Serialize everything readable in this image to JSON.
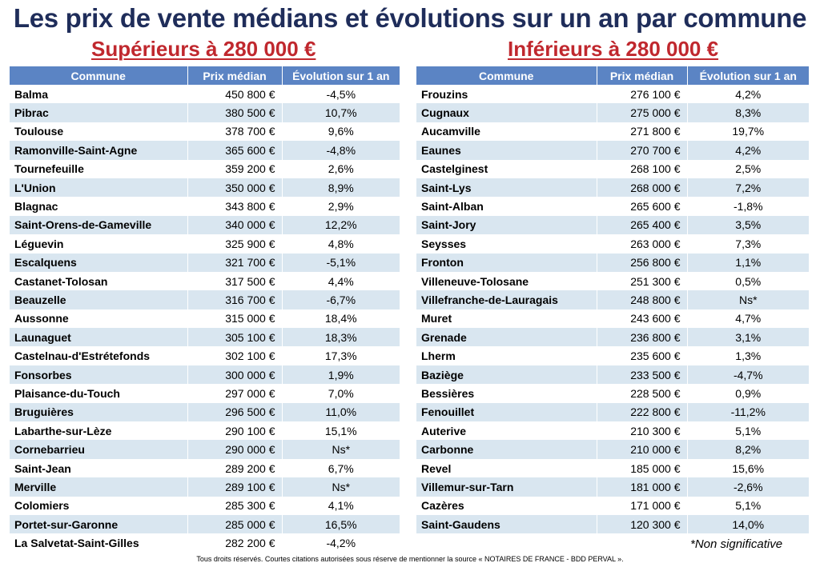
{
  "title": "Les prix de vente médians et évolutions sur un an par commune",
  "left": {
    "subtitle": "Supérieurs à 280 000 €",
    "headers": [
      "Commune",
      "Prix médian",
      "Évolution sur 1 an"
    ],
    "rows": [
      [
        "Balma",
        "450 800 €",
        "-4,5%"
      ],
      [
        "Pibrac",
        "380 500 €",
        "10,7%"
      ],
      [
        "Toulouse",
        "378 700 €",
        "9,6%"
      ],
      [
        "Ramonville-Saint-Agne",
        "365 600 €",
        "-4,8%"
      ],
      [
        "Tournefeuille",
        "359 200 €",
        "2,6%"
      ],
      [
        "L'Union",
        "350 000 €",
        "8,9%"
      ],
      [
        "Blagnac",
        "343 800 €",
        "2,9%"
      ],
      [
        "Saint-Orens-de-Gameville",
        "340 000 €",
        "12,2%"
      ],
      [
        "Léguevin",
        "325 900 €",
        "4,8%"
      ],
      [
        "Escalquens",
        "321 700 €",
        "-5,1%"
      ],
      [
        "Castanet-Tolosan",
        "317 500 €",
        "4,4%"
      ],
      [
        "Beauzelle",
        "316 700 €",
        "-6,7%"
      ],
      [
        "Aussonne",
        "315 000 €",
        "18,4%"
      ],
      [
        "Launaguet",
        "305 100 €",
        "18,3%"
      ],
      [
        "Castelnau-d'Estrétefonds",
        "302 100 €",
        "17,3%"
      ],
      [
        "Fonsorbes",
        "300 000 €",
        "1,9%"
      ],
      [
        "Plaisance-du-Touch",
        "297 000 €",
        "7,0%"
      ],
      [
        "Bruguières",
        "296 500 €",
        "11,0%"
      ],
      [
        "Labarthe-sur-Lèze",
        "290 100 €",
        "15,1%"
      ],
      [
        "Cornebarrieu",
        "290 000 €",
        "Ns*"
      ],
      [
        "Saint-Jean",
        "289 200 €",
        "6,7%"
      ],
      [
        "Merville",
        "289 100 €",
        "Ns*"
      ],
      [
        "Colomiers",
        "285 300 €",
        "4,1%"
      ],
      [
        "Portet-sur-Garonne",
        "285 000 €",
        "16,5%"
      ],
      [
        "La Salvetat-Saint-Gilles",
        "282 200 €",
        "-4,2%"
      ]
    ]
  },
  "right": {
    "subtitle": "Inférieurs à 280 000 €",
    "headers": [
      "Commune",
      "Prix médian",
      "Évolution sur 1 an"
    ],
    "rows": [
      [
        "Frouzins",
        "276 100 €",
        "4,2%"
      ],
      [
        "Cugnaux",
        "275 000 €",
        "8,3%"
      ],
      [
        "Aucamville",
        "271 800 €",
        "19,7%"
      ],
      [
        "Eaunes",
        "270 700 €",
        "4,2%"
      ],
      [
        "Castelginest",
        "268 100 €",
        "2,5%"
      ],
      [
        "Saint-Lys",
        "268 000 €",
        "7,2%"
      ],
      [
        "Saint-Alban",
        "265 600 €",
        "-1,8%"
      ],
      [
        "Saint-Jory",
        "265 400 €",
        "3,5%"
      ],
      [
        "Seysses",
        "263 000 €",
        "7,3%"
      ],
      [
        "Fronton",
        "256 800 €",
        "1,1%"
      ],
      [
        "Villeneuve-Tolosane",
        "251 300 €",
        "0,5%"
      ],
      [
        "Villefranche-de-Lauragais",
        "248 800 €",
        "Ns*"
      ],
      [
        "Muret",
        "243 600 €",
        "4,7%"
      ],
      [
        "Grenade",
        "236 800 €",
        "3,1%"
      ],
      [
        "Lherm",
        "235 600 €",
        "1,3%"
      ],
      [
        "Baziège",
        "233 500 €",
        "-4,7%"
      ],
      [
        "Bessières",
        "228 500 €",
        "0,9%"
      ],
      [
        "Fenouillet",
        "222 800 €",
        "-11,2%"
      ],
      [
        "Auterive",
        "210 300 €",
        "5,1%"
      ],
      [
        "Carbonne",
        "210 000 €",
        "8,2%"
      ],
      [
        "Revel",
        "185 000 €",
        "15,6%"
      ],
      [
        "Villemur-sur-Tarn",
        "181 000 €",
        "-2,6%"
      ],
      [
        "Cazères",
        "171 000 €",
        "5,1%"
      ],
      [
        "Saint-Gaudens",
        "120 300 €",
        "14,0%"
      ]
    ]
  },
  "footnote": "*Non significative",
  "copyright": "Tous droits réservés. Courtes citations autorisées sous réserve de mentionner la source « NOTAIRES DE FRANCE - BDD PERVAL »."
}
